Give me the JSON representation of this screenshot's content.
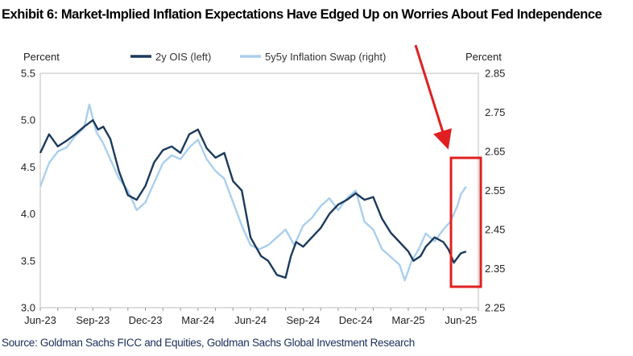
{
  "title": "Exhibit 6: Market-Implied Inflation Expectations Have Edged Up on Worries About Fed Independence",
  "source": "Source: Goldman Sachs FICC and Equities, Goldman Sachs Global Investment Research",
  "colors": {
    "ois": "#1b3a5c",
    "swap": "#a9cfee",
    "annotation": "#e02020"
  },
  "chart_data": {
    "type": "line",
    "left_axis_label": "Percent",
    "right_axis_label": "Percent",
    "left_ylim": [
      3.0,
      5.5
    ],
    "right_ylim": [
      2.25,
      2.85
    ],
    "left_ticks": [
      "5.5",
      "5.0",
      "4.5",
      "4.0",
      "3.5",
      "3.0"
    ],
    "right_ticks": [
      "2.85",
      "2.75",
      "2.65",
      "2.55",
      "2.45",
      "2.35",
      "2.25"
    ],
    "x_ticks": [
      "Jun-23",
      "Sep-23",
      "Dec-23",
      "Mar-24",
      "Jun-24",
      "Sep-24",
      "Dec-24",
      "Mar-25",
      "Jun-25"
    ],
    "x_range_months": [
      0,
      25
    ],
    "series": [
      {
        "name": "2y OIS (left)",
        "axis": "left",
        "months": [
          0,
          0.5,
          1,
          1.5,
          2,
          2.5,
          3,
          3.3,
          3.6,
          4,
          4.5,
          5,
          5.5,
          6,
          6.5,
          7,
          7.5,
          8,
          8.5,
          9,
          9.5,
          10,
          10.5,
          11,
          11.5,
          12,
          12.3,
          12.6,
          13,
          13.5,
          14,
          14.3,
          14.6,
          15,
          15.5,
          16,
          16.5,
          17,
          17.5,
          18,
          18.5,
          19,
          19.5,
          20,
          20.5,
          21,
          21.3,
          21.7,
          22,
          22.5,
          23,
          23.3,
          23.6,
          24,
          24.3
        ],
        "values": [
          4.65,
          4.85,
          4.72,
          4.78,
          4.85,
          4.93,
          5.0,
          4.9,
          4.93,
          4.8,
          4.45,
          4.2,
          4.15,
          4.3,
          4.55,
          4.68,
          4.72,
          4.65,
          4.85,
          4.9,
          4.7,
          4.6,
          4.65,
          4.35,
          4.25,
          3.75,
          3.65,
          3.55,
          3.5,
          3.35,
          3.32,
          3.55,
          3.7,
          3.65,
          3.75,
          3.85,
          4.0,
          4.1,
          4.15,
          4.22,
          4.15,
          4.18,
          3.95,
          3.8,
          3.7,
          3.6,
          3.5,
          3.55,
          3.65,
          3.75,
          3.7,
          3.62,
          3.48,
          3.58,
          3.6
        ]
      },
      {
        "name": "5y5y Inflation Swap (right)",
        "axis": "right",
        "months": [
          0,
          0.5,
          1,
          1.5,
          2,
          2.5,
          2.8,
          3.2,
          3.6,
          4,
          4.5,
          5,
          5.5,
          6,
          6.5,
          7,
          7.5,
          8,
          8.5,
          9,
          9.5,
          10,
          10.5,
          11,
          11.5,
          12,
          12.5,
          13,
          13.5,
          14,
          14.5,
          15,
          15.5,
          16,
          16.5,
          17,
          17.5,
          18,
          18.5,
          19,
          19.5,
          20,
          20.5,
          20.8,
          21.2,
          21.6,
          22,
          22.5,
          23,
          23.4,
          23.8,
          24,
          24.3
        ],
        "values": [
          2.56,
          2.62,
          2.65,
          2.66,
          2.69,
          2.71,
          2.77,
          2.7,
          2.67,
          2.63,
          2.58,
          2.55,
          2.5,
          2.52,
          2.57,
          2.62,
          2.64,
          2.63,
          2.66,
          2.68,
          2.63,
          2.6,
          2.58,
          2.52,
          2.46,
          2.41,
          2.4,
          2.41,
          2.43,
          2.45,
          2.41,
          2.46,
          2.48,
          2.51,
          2.53,
          2.5,
          2.53,
          2.55,
          2.47,
          2.45,
          2.4,
          2.38,
          2.36,
          2.32,
          2.37,
          2.4,
          2.44,
          2.42,
          2.45,
          2.47,
          2.51,
          2.54,
          2.56
        ]
      }
    ],
    "annotation": {
      "type": "box-with-arrow",
      "highlight_months": [
        23.5,
        25
      ]
    }
  }
}
